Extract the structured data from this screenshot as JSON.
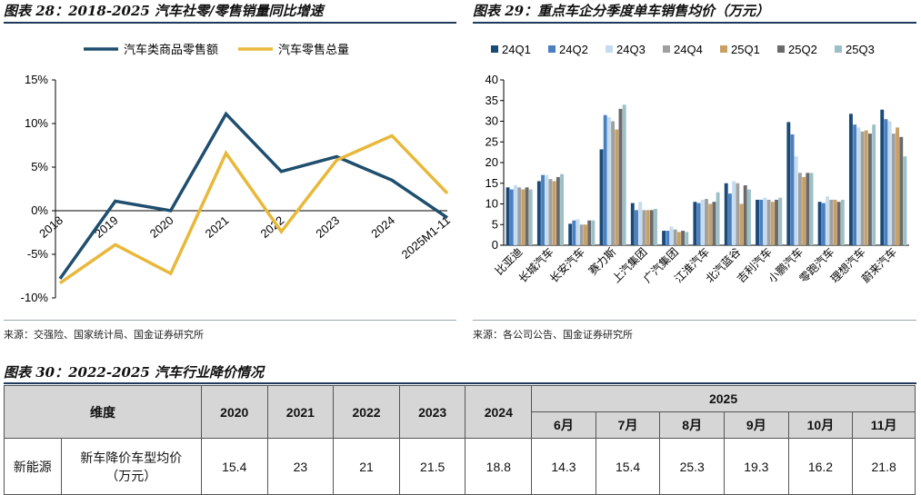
{
  "fig28": {
    "title": "图表 28：2018-2025 汽车社零/零售销量同比增速",
    "source": "来源：交强险、国家统计局、国金证券研究所",
    "chart_data": {
      "type": "line",
      "x": [
        "2018",
        "2019",
        "2020",
        "2021",
        "2022",
        "2023",
        "2024",
        "2025M1-11"
      ],
      "y_ticks": [
        "15%",
        "10%",
        "5%",
        "0%",
        "-5%",
        "-10%"
      ],
      "ylim": [
        -10,
        15
      ],
      "legend": "top",
      "series": [
        {
          "name": "汽车类商品零售额",
          "color": "#1f4e6e",
          "values": [
            -7.8,
            1.1,
            0.0,
            11.1,
            4.5,
            6.2,
            3.5,
            -0.8
          ]
        },
        {
          "name": "汽车零售总量",
          "color": "#e8b83a",
          "values": [
            -8.3,
            -3.9,
            -7.2,
            6.6,
            -2.4,
            5.8,
            8.6,
            2.0
          ]
        }
      ]
    }
  },
  "fig29": {
    "title": "图表 29：重点车企分季度单车销售均价（万元）",
    "source": "来源：各公司公告、国金证券研究所",
    "chart_data": {
      "type": "bar",
      "categories": [
        "比亚迪",
        "长城汽车",
        "长安汽车",
        "赛力斯",
        "上汽集团",
        "广汽集团",
        "江淮汽车",
        "北汽蓝谷",
        "吉利汽车",
        "小鹏汽车",
        "零跑汽车",
        "理想汽车",
        "蔚来汽车"
      ],
      "ylim": [
        0,
        40
      ],
      "y_ticks": [
        "0",
        "5",
        "10",
        "15",
        "20",
        "25",
        "30",
        "35",
        "40"
      ],
      "legend": "top",
      "series": [
        {
          "name": "24Q1",
          "color": "#1a4a78",
          "values": [
            14.0,
            15.5,
            5.2,
            23.2,
            10.2,
            3.5,
            10.5,
            15.0,
            11.0,
            29.8,
            10.5,
            31.8,
            32.8
          ]
        },
        {
          "name": "24Q2",
          "color": "#4a7fc0",
          "values": [
            13.5,
            17.0,
            6.0,
            31.5,
            8.5,
            3.5,
            10.2,
            12.5,
            11.0,
            26.8,
            10.2,
            29.2,
            30.5
          ]
        },
        {
          "name": "24Q3",
          "color": "#c5dcf0",
          "values": [
            14.5,
            17.0,
            6.3,
            31.0,
            10.5,
            4.5,
            11.0,
            15.5,
            11.5,
            21.5,
            11.8,
            28.5,
            30.0
          ]
        },
        {
          "name": "24Q4",
          "color": "#a0a0a0",
          "values": [
            14.0,
            16.0,
            5.0,
            30.0,
            8.5,
            3.8,
            11.2,
            15.0,
            11.0,
            17.5,
            11.0,
            27.5,
            27.0
          ]
        },
        {
          "name": "25Q1",
          "color": "#c8a064",
          "values": [
            13.5,
            15.5,
            5.0,
            28.0,
            8.5,
            3.2,
            10.0,
            10.0,
            10.5,
            16.5,
            11.0,
            27.8,
            28.5
          ]
        },
        {
          "name": "25Q2",
          "color": "#6a6a6a",
          "values": [
            14.0,
            16.5,
            6.0,
            33.0,
            8.5,
            3.5,
            10.5,
            14.5,
            11.0,
            17.5,
            10.5,
            27.0,
            26.2
          ]
        },
        {
          "name": "25Q3",
          "color": "#9cc0c8",
          "values": [
            13.5,
            17.2,
            6.0,
            34.0,
            8.8,
            3.2,
            12.8,
            13.5,
            11.5,
            17.5,
            11.0,
            29.2,
            21.5
          ]
        }
      ]
    }
  },
  "fig30": {
    "title": "图表 30：2022-2025 汽车行业降价情况",
    "header": {
      "dim": "维度",
      "years": [
        "2020",
        "2021",
        "2022",
        "2023",
        "2024"
      ],
      "year2025": "2025",
      "months": [
        "6月",
        "7月",
        "8月",
        "9月",
        "10月",
        "11月"
      ]
    },
    "row": {
      "category": "新能源",
      "metric": "新车降价车型均价",
      "unit": "（万元）",
      "values": [
        "15.4",
        "23",
        "21",
        "21.5",
        "18.8",
        "14.3",
        "15.4",
        "25.3",
        "19.3",
        "16.2",
        "21.8"
      ]
    }
  }
}
